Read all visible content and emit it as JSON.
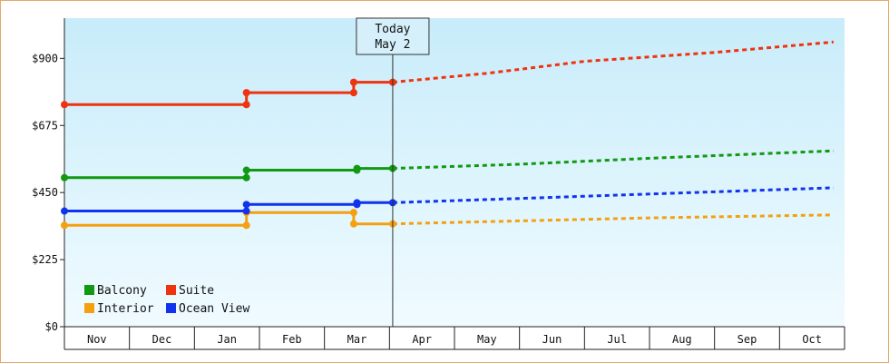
{
  "chart_data": {
    "type": "line",
    "title": "",
    "xlabel": "",
    "ylabel": "",
    "x_range": [
      "Nov",
      "Oct"
    ],
    "ylim": [
      0,
      1035
    ],
    "y_ticks": [
      0,
      225,
      450,
      675,
      900
    ],
    "y_tick_labels": [
      "$0",
      "$225",
      "$450",
      "$675",
      "$900"
    ],
    "months": [
      "Nov",
      "Dec",
      "Jan",
      "Feb",
      "Mar",
      "Apr",
      "May",
      "Jun",
      "Jul",
      "Aug",
      "Sep",
      "Oct"
    ],
    "grid": false,
    "legend_position": "bottom-left",
    "today_marker": {
      "line1": "Today",
      "line2": "May 2",
      "x": 5.05
    },
    "series": [
      {
        "name": "Balcony",
        "color": "#119911",
        "actual": [
          [
            0,
            500
          ],
          [
            2.8,
            500
          ],
          [
            2.8,
            525
          ],
          [
            4.5,
            525
          ],
          [
            4.5,
            531
          ],
          [
            5.05,
            531
          ]
        ],
        "forecast": [
          [
            5.05,
            531
          ],
          [
            7,
            545
          ],
          [
            9,
            565
          ],
          [
            11.83,
            590
          ]
        ]
      },
      {
        "name": "Suite",
        "color": "#ee3311",
        "actual": [
          [
            0,
            745
          ],
          [
            2.8,
            745
          ],
          [
            2.8,
            785
          ],
          [
            4.45,
            785
          ],
          [
            4.45,
            820
          ],
          [
            5.05,
            820
          ]
        ],
        "forecast": [
          [
            5.05,
            820
          ],
          [
            6.5,
            850
          ],
          [
            8,
            890
          ],
          [
            10,
            920
          ],
          [
            11.83,
            955
          ]
        ]
      },
      {
        "name": "Interior",
        "color": "#f4a010",
        "actual": [
          [
            0,
            340
          ],
          [
            2.8,
            340
          ],
          [
            2.8,
            383
          ],
          [
            4.45,
            383
          ],
          [
            4.45,
            345
          ],
          [
            5.05,
            345
          ]
        ],
        "forecast": [
          [
            5.05,
            345
          ],
          [
            7,
            355
          ],
          [
            9,
            365
          ],
          [
            11.83,
            375
          ]
        ]
      },
      {
        "name": "Ocean View",
        "color": "#1133ee",
        "actual": [
          [
            0,
            388
          ],
          [
            2.8,
            388
          ],
          [
            2.8,
            410
          ],
          [
            4.5,
            410
          ],
          [
            4.5,
            416
          ],
          [
            5.05,
            416
          ]
        ],
        "forecast": [
          [
            5.05,
            416
          ],
          [
            7,
            430
          ],
          [
            9,
            445
          ],
          [
            11.83,
            466
          ]
        ]
      }
    ]
  }
}
